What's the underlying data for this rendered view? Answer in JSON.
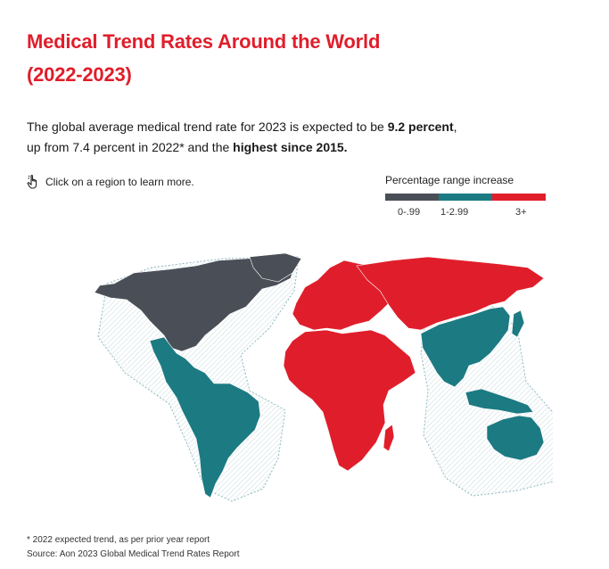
{
  "title": {
    "line1": "Medical Trend Rates Around the World",
    "line2": "(2022-2023)"
  },
  "description": {
    "part1": "The global average medical trend rate for 2023 is expected to be ",
    "bold1": "9.2 percent",
    "part2": ",",
    "part3": "up from 7.4 percent in 2022* and the ",
    "bold2": "highest since 2015."
  },
  "hint": {
    "icon": "hand-pointer-icon",
    "text": "Click on a region to learn more."
  },
  "legend": {
    "title": "Percentage range increase",
    "items": [
      {
        "label": "0-.99",
        "color": "#4a4f57"
      },
      {
        "label": "1-2.99",
        "color": "#1c7a82"
      },
      {
        "label": "3+",
        "color": "#e01e2b"
      }
    ]
  },
  "map": {
    "regions": [
      {
        "name": "North America",
        "range": "0-.99"
      },
      {
        "name": "Latin America",
        "range": "1-2.99"
      },
      {
        "name": "Asia Pacific",
        "range": "1-2.99"
      },
      {
        "name": "Europe",
        "range": "3+"
      },
      {
        "name": "Middle East & Africa",
        "range": "3+"
      }
    ]
  },
  "footer": {
    "note": "* 2022 expected trend, as per prior year report",
    "source": "Source: Aon 2023 Global Medical Trend Rates Report"
  }
}
